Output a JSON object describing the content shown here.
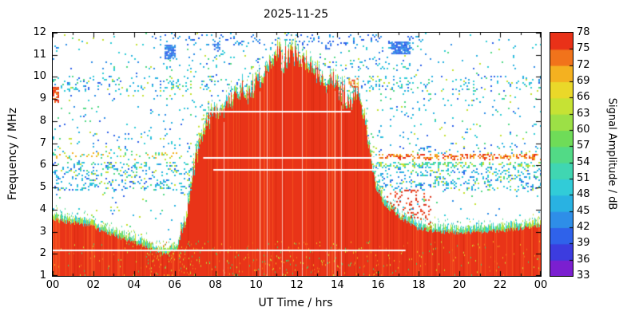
{
  "chart": {
    "title": "2025-11-25",
    "xlabel": "UT Time / hrs",
    "ylabel": "Frequency / MHz",
    "colorbar_label": "Signal Amplitude / dB"
  },
  "chart_data": {
    "type": "heatmap",
    "title": "2025-11-25",
    "xlabel": "UT Time / hrs",
    "ylabel": "Frequency / MHz",
    "xlim": [
      0,
      24
    ],
    "ylim": [
      1,
      12
    ],
    "x_tick_labels": [
      "00",
      "02",
      "04",
      "06",
      "08",
      "10",
      "12",
      "14",
      "16",
      "18",
      "20",
      "22",
      "00"
    ],
    "x_tick_values": [
      0,
      2,
      4,
      6,
      8,
      10,
      12,
      14,
      16,
      18,
      20,
      22,
      24
    ],
    "x_minor_tick_values": [
      1,
      3,
      5,
      7,
      9,
      11,
      13,
      15,
      17,
      19,
      21,
      23
    ],
    "y_ticks": [
      1,
      2,
      3,
      4,
      5,
      6,
      7,
      8,
      9,
      10,
      11,
      12
    ],
    "background": "#ffffff",
    "colorbar": {
      "label": "Signal Amplitude / dB",
      "min": 33,
      "max": 78,
      "step": 3,
      "ticks": [
        78,
        75,
        72,
        69,
        66,
        63,
        60,
        57,
        54,
        51,
        48,
        45,
        42,
        39,
        36,
        33
      ],
      "palette_ascending": [
        "#7b1fd0",
        "#3c3cdf",
        "#2f62ea",
        "#2e8ee8",
        "#29b2e2",
        "#31ccd8",
        "#40d6b2",
        "#52da86",
        "#6fdc58",
        "#9ce046",
        "#c6e234",
        "#ead829",
        "#f4b120",
        "#f1731b",
        "#e93118"
      ]
    },
    "seed": 20251125,
    "speckle_base_density": 0.022,
    "speckle_colors": [
      "#31ccd8",
      "#31ccd8",
      "#29b2e2",
      "#29b2e2",
      "#2e8ee8",
      "#2f62ea",
      "#52da86",
      "#c6e234"
    ],
    "red_shades": [
      "#e93418",
      "#f4511f",
      "#d92b10"
    ],
    "fringe_colors": [
      "#53da8a",
      "#43d6b4",
      "#9fe04a",
      "#35cdd8",
      "#c6e234"
    ],
    "mottle_colors": [
      "#49c96a",
      "#c6e234",
      "#f4b120",
      "#f1731b"
    ],
    "patch_colors": [
      "#2e5fe8",
      "#2e8ee8"
    ],
    "noise_bands": [
      {
        "f": [
          4.85,
          6.15
        ],
        "t": [
          0,
          24
        ],
        "mult": 9
      },
      {
        "f": [
          6.3,
          7.05
        ],
        "t": [
          0,
          24
        ],
        "mult": 3
      },
      {
        "f": [
          7.15,
          7.5
        ],
        "t": [
          0,
          24
        ],
        "mult": 2.5
      },
      {
        "f": [
          8.2,
          8.65
        ],
        "t": [
          0,
          24
        ],
        "mult": 1.8
      },
      {
        "f": [
          8.9,
          9.25
        ],
        "t": [
          0,
          24
        ],
        "mult": 2.5
      },
      {
        "f": [
          9.35,
          10.05
        ],
        "t": [
          0,
          24
        ],
        "mult": 6
      },
      {
        "f": [
          10.35,
          10.95
        ],
        "t": [
          5,
          18.2
        ],
        "mult": 2.2
      },
      {
        "f": [
          11.45,
          11.95
        ],
        "t": [
          5,
          18.2
        ],
        "mult": 4,
        "colors": [
          "#2f62ea",
          "#2e8ee8",
          "#29b2e2"
        ]
      },
      {
        "f": [
          10.3,
          12
        ],
        "t": [
          5,
          18
        ],
        "mult": 1.5
      },
      {
        "f": [
          6.2,
          6.6
        ],
        "t": [
          0,
          6.5
        ],
        "mult": 2.5,
        "colors": [
          "#c6e234",
          "#f4b120",
          "#52da86",
          "#31ccd8"
        ]
      },
      {
        "f": [
          6.25,
          6.5
        ],
        "t": [
          16,
          24
        ],
        "mult": 8,
        "colors": [
          "#e93118",
          "#f1731b",
          "#f4b120"
        ]
      },
      {
        "f": [
          5.95,
          6.2
        ],
        "t": [
          16,
          24
        ],
        "mult": 2,
        "colors": [
          "#52da86",
          "#c6e234",
          "#31ccd8"
        ]
      },
      {
        "f": [
          3.2,
          4.3
        ],
        "t": [
          0,
          5.5
        ],
        "mult": 1.6
      }
    ],
    "patches": [
      {
        "t": [
          5.5,
          6.0
        ],
        "f": [
          10.85,
          11.45
        ],
        "density": 0.7
      },
      {
        "t": [
          16.65,
          17.55
        ],
        "f": [
          11.05,
          11.6
        ],
        "density": 0.75
      },
      {
        "t": [
          7.85,
          8.2
        ],
        "f": [
          11.15,
          11.5
        ],
        "density": 0.5
      },
      {
        "t": [
          13.4,
          13.7
        ],
        "f": [
          11.3,
          11.6
        ],
        "density": 0.4
      },
      {
        "t": [
          0,
          0.3
        ],
        "f": [
          8.85,
          9.55
        ],
        "density": 0.5,
        "colors": [
          "#e93118",
          "#f1731b"
        ]
      },
      {
        "t": [
          14.55,
          15.0
        ],
        "f": [
          9.55,
          9.95
        ],
        "density": 0.45,
        "colors": [
          "#f1731b",
          "#e93118",
          "#f4b120"
        ]
      }
    ],
    "envelope_points": [
      [
        0,
        3.55
      ],
      [
        0.7,
        3.45
      ],
      [
        1.5,
        3.35
      ],
      [
        2,
        3.25
      ],
      [
        2.5,
        3.0
      ],
      [
        3,
        2.85
      ],
      [
        3.8,
        2.6
      ],
      [
        4.5,
        2.35
      ],
      [
        5,
        2.2
      ],
      [
        5.6,
        2.0
      ],
      [
        6.1,
        2.25
      ],
      [
        6.5,
        3.3
      ],
      [
        6.8,
        4.9
      ],
      [
        7.0,
        6.1
      ],
      [
        7.3,
        7.2
      ],
      [
        7.6,
        7.9
      ],
      [
        8.0,
        8.35
      ],
      [
        8.4,
        8.55
      ],
      [
        8.8,
        9.0
      ],
      [
        9.2,
        9.2
      ],
      [
        9.6,
        8.95
      ],
      [
        10.0,
        9.7
      ],
      [
        10.4,
        10.15
      ],
      [
        10.8,
        10.6
      ],
      [
        11.1,
        10.95
      ],
      [
        11.4,
        10.45
      ],
      [
        11.7,
        11.05
      ],
      [
        12.0,
        10.8
      ],
      [
        12.3,
        10.9
      ],
      [
        12.6,
        10.35
      ],
      [
        12.9,
        10.2
      ],
      [
        13.2,
        9.95
      ],
      [
        13.5,
        9.55
      ],
      [
        13.8,
        9.9
      ],
      [
        14.1,
        9.25
      ],
      [
        14.4,
        8.8
      ],
      [
        14.7,
        8.95
      ],
      [
        15.0,
        9.35
      ],
      [
        15.2,
        8.85
      ],
      [
        15.4,
        7.7
      ],
      [
        15.6,
        6.6
      ],
      [
        15.8,
        5.5
      ],
      [
        16.0,
        4.75
      ],
      [
        16.4,
        4.15
      ],
      [
        16.8,
        3.85
      ],
      [
        17.2,
        3.55
      ],
      [
        17.6,
        3.35
      ],
      [
        18.0,
        3.15
      ],
      [
        19,
        3.0
      ],
      [
        20,
        2.95
      ],
      [
        21,
        3.0
      ],
      [
        22,
        3.05
      ],
      [
        23,
        3.15
      ],
      [
        24,
        3.3
      ]
    ],
    "marker_lines": [
      {
        "f": 8.42,
        "t": [
          7.15,
          14.65
        ],
        "color": "#ffffff"
      },
      {
        "f": 6.32,
        "t": [
          7.4,
          16.05
        ],
        "color": "#ffffff"
      },
      {
        "f": 5.78,
        "t": [
          7.9,
          16.05
        ],
        "color": "#ffffff"
      },
      {
        "f": 2.15,
        "t": [
          0,
          17.35
        ],
        "color": "#ffffff"
      }
    ]
  }
}
